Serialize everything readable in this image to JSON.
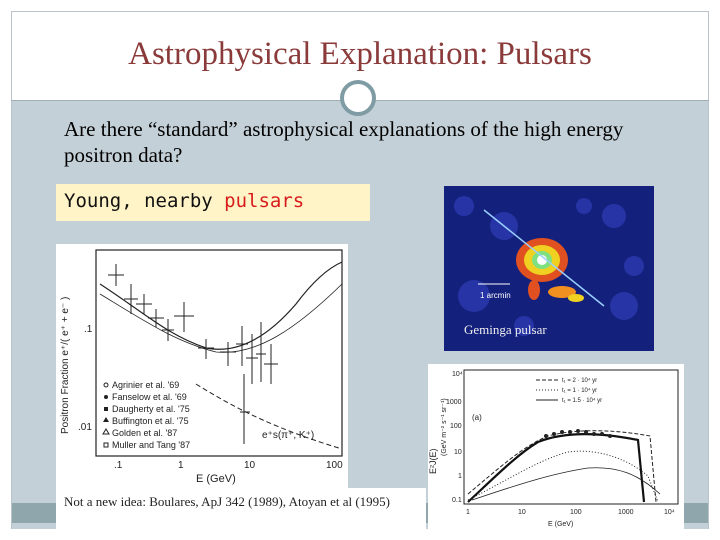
{
  "slide": {
    "title": "Astrophysical Explanation: Pulsars",
    "bullet": "Are there “standard” astrophysical explanations of the high energy positron data?",
    "highlight_prefix": "Young, nearby ",
    "highlight_word": "pulsars",
    "caption": "Not a new idea: Boulares, ApJ 342 (1989), Atoyan et al (1995)"
  },
  "left_plot": {
    "ylabel": "Positron Fraction e⁺/( e⁺ + e⁻ )",
    "xlabel": "E (GeV)",
    "yticks": [
      ".1",
      ".01"
    ],
    "xticks": [
      ".1",
      "1",
      "10",
      "100"
    ],
    "legend": [
      "Agrinier et al. '69",
      "Fanselow et al. '69",
      "Daugherty et al. '75",
      "Buffington et al. '75",
      "Golden et al. '87",
      "Muller and Tang '87"
    ],
    "annotation": "e⁺s(π⁺, K⁺)"
  },
  "geminga": {
    "label": "Geminga pulsar",
    "scale_label": "1 arcmin"
  },
  "right_plot": {
    "ylabel": "E²J(E)",
    "yunits": "(GeV m⁻² s⁻¹ sr⁻¹)",
    "xlabel": "E",
    "xunits": "(GeV)",
    "panel": "(a)",
    "yticks": [
      "10⁴",
      "1000",
      "100",
      "10",
      "1",
      "0.1"
    ],
    "xticks": [
      "1",
      "10",
      "100",
      "1000",
      "10⁴"
    ],
    "legend": [
      "t₁ = 2 · 10⁴ yr",
      "t₁ = 1 · 10⁴ yr",
      "t₁ = 1.5 · 10⁴ yr"
    ]
  },
  "colors": {
    "title": "#8b3a3a",
    "content_bg": "#c4d0d8",
    "highlight_bg": "#fff4c8",
    "highlight_word": "#d81b1b",
    "accent": "#7f9ba4"
  }
}
